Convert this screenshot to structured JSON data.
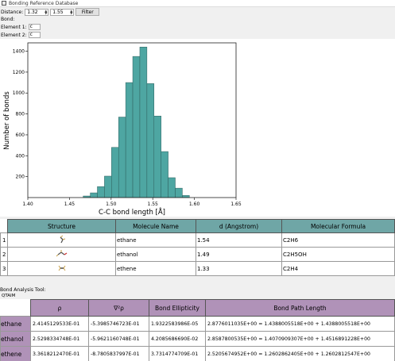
{
  "window": {
    "title": "Bonding Reference Database"
  },
  "controls": {
    "distance_label": "Distance:",
    "distance_min": "1.32",
    "distance_max": "1.55",
    "filter_label": "Filter",
    "bond_label": "Bond:",
    "element1_label": "Element 1:",
    "element1_value": "c",
    "element2_label": "Element 2:",
    "element2_value": "c"
  },
  "chart_data": {
    "type": "bar",
    "xlabel": "C-C bond length [Å]",
    "ylabel": "Number of bonds",
    "xlim": [
      1.4,
      1.65
    ],
    "ylim": [
      0,
      1480
    ],
    "xticks": [
      "1.40",
      "1.45",
      "1.50",
      "1.55",
      "1.60",
      "1.65"
    ],
    "yticks": [
      "200",
      "400",
      "600",
      "800",
      "1000",
      "1200",
      "1400"
    ],
    "bin_width": 0.0085,
    "bin_starts": [
      1.4665,
      1.475,
      1.4835,
      1.492,
      1.5005,
      1.509,
      1.5175,
      1.526,
      1.5345,
      1.543,
      1.5515,
      1.56,
      1.5685,
      1.577,
      1.5855
    ],
    "values": [
      15,
      45,
      105,
      205,
      480,
      770,
      1100,
      1350,
      1440,
      1090,
      780,
      440,
      190,
      90,
      20
    ],
    "color": "#4ea6a2"
  },
  "molecules": {
    "headers": [
      "Structure",
      "Molecule Name",
      "d (Angstrom)",
      "Molecular Formula"
    ],
    "rows": [
      {
        "index": "1",
        "name": "ethane",
        "d": "1.54",
        "formula": "C2H6"
      },
      {
        "index": "2",
        "name": "ethanol",
        "d": "1.49",
        "formula": "C2H5OH"
      },
      {
        "index": "3",
        "name": "ethene",
        "d": "1.33",
        "formula": "C2H4"
      }
    ]
  },
  "analysis": {
    "label": "Bond Analysis Tool:",
    "tool": "QTAIM",
    "headers": [
      "ρ",
      "∇²ρ",
      "Bond Ellipticity",
      "Bond Path Length"
    ],
    "rows": [
      {
        "name": "ethane",
        "rho": "2.4145129533E-01",
        "lap": "-5.3985746723E-01",
        "ell": "1.9322583986E-05",
        "path": "2.8776011035E+00 = 1.4388005518E+00 + 1.4388005518E+00"
      },
      {
        "name": "ethanol",
        "rho": "2.5298334748E-01",
        "lap": "-5.9621160748E-01",
        "ell": "4.2085686690E-02",
        "path": "2.8587800535E+00 = 1.4070909307E+00 + 1.4516891228E+00"
      },
      {
        "name": "ethene",
        "rho": "3.3618212470E-01",
        "lap": "-8.7805837997E-01",
        "ell": "3.7314774709E-01",
        "path": "2.5205674952E+00 = 1.2602862405E+00 + 1.2602812547E+00"
      }
    ]
  }
}
